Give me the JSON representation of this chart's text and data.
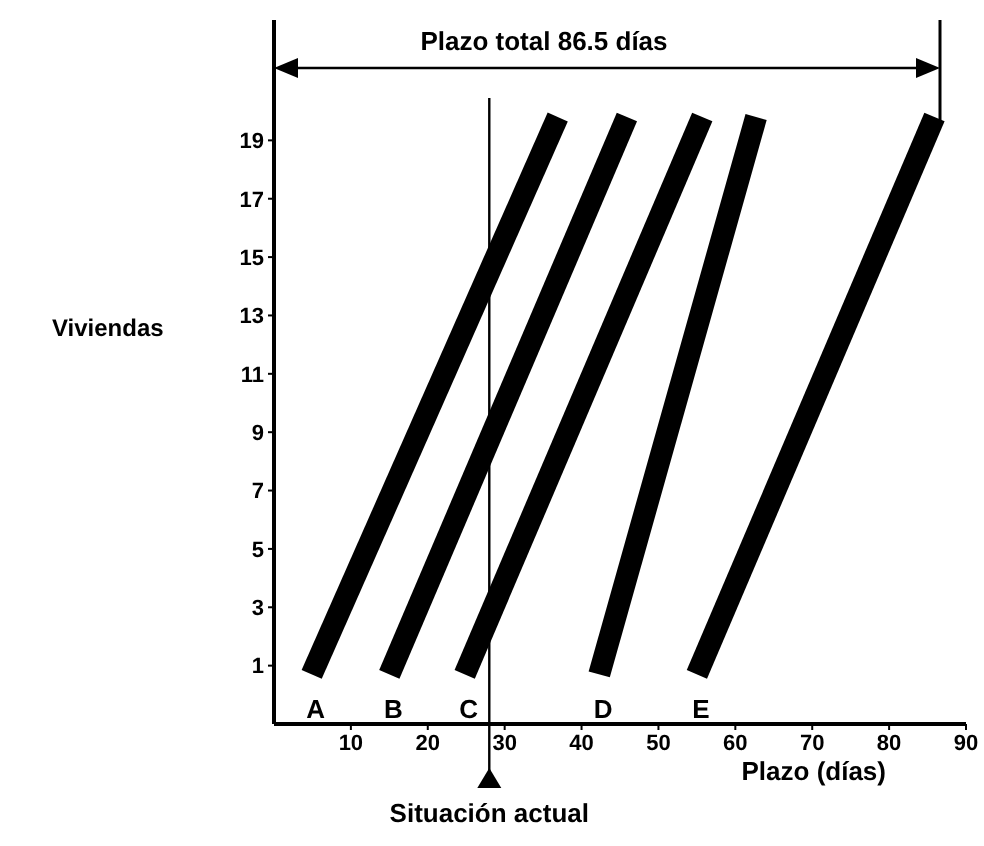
{
  "chart_data": {
    "type": "line",
    "xlabel": "Plazo (días)",
    "ylabel": "Viviendas",
    "xlim": [
      0,
      90
    ],
    "xticks": [
      10,
      20,
      30,
      40,
      50,
      60,
      70,
      80,
      90
    ],
    "ylim": [
      -1,
      21
    ],
    "yticks": [
      1,
      3,
      5,
      7,
      9,
      11,
      13,
      15,
      17,
      19
    ],
    "marker": "none",
    "line_style": "solid",
    "series": [
      {
        "name": "A",
        "color": "#000000",
        "x": [
          4.9,
          36.9
        ],
        "values": [
          0.7,
          19.8
        ]
      },
      {
        "name": "B",
        "color": "#000000",
        "x": [
          15,
          45.9
        ],
        "values": [
          0.7,
          19.8
        ]
      },
      {
        "name": "C",
        "color": "#000000",
        "x": [
          24.8,
          55.7
        ],
        "values": [
          0.7,
          19.8
        ]
      },
      {
        "name": "D",
        "color": "#000000",
        "x": [
          42.3,
          62.7
        ],
        "values": [
          0.7,
          19.8
        ]
      },
      {
        "name": "E",
        "color": "#000000",
        "x": [
          55,
          85.9
        ],
        "values": [
          0.7,
          19.8
        ]
      }
    ],
    "ref_lines": [
      {
        "axis": "x",
        "value": 28,
        "label": "Situación actual"
      }
    ],
    "annotations": [
      "Plazo total 86.5 días"
    ]
  }
}
